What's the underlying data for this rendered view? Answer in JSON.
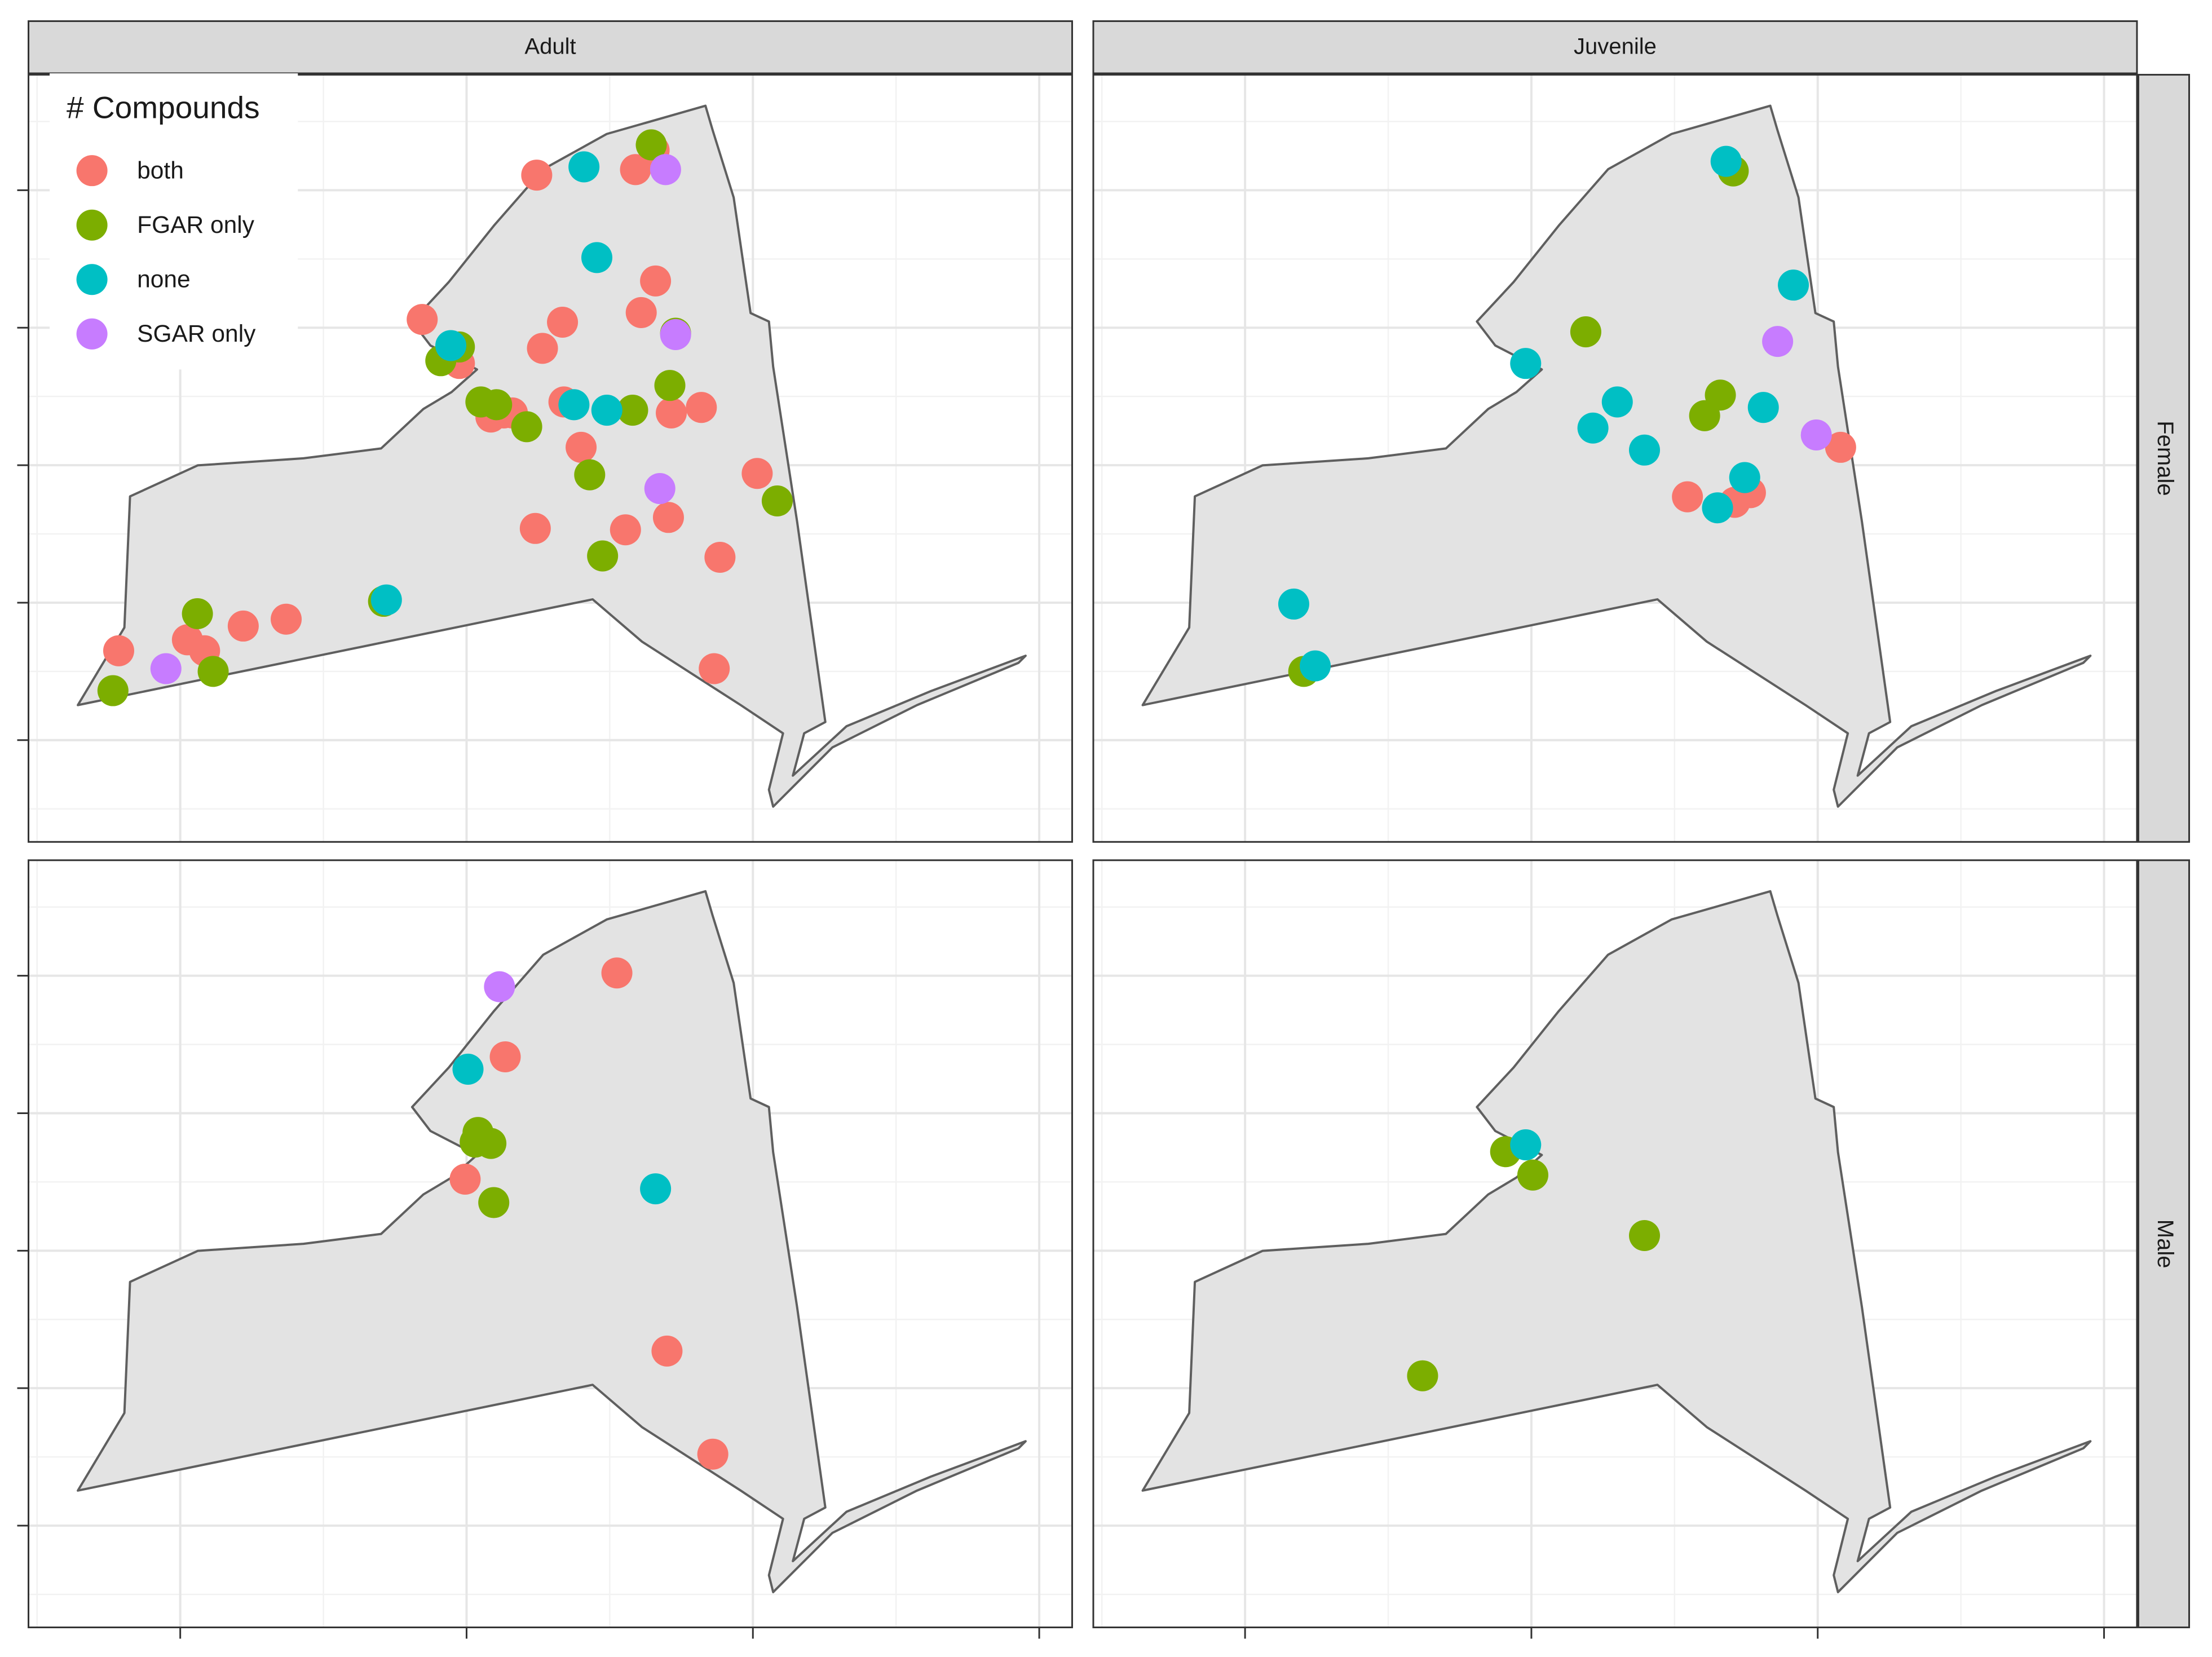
{
  "chart_data": {
    "type": "scatter",
    "legend_title": "# Compounds",
    "legend_position": "top-left",
    "columns": [
      "Adult",
      "Juvenile"
    ],
    "rows": [
      "Female",
      "Male"
    ],
    "xlim": [
      -6,
      723
    ],
    "ylim": [
      4426,
      4984
    ],
    "xticks": [
      100,
      300,
      500,
      700
    ],
    "yticks": [
      4500,
      4600,
      4700,
      4800,
      4900
    ],
    "grid": true,
    "series": [
      {
        "name": "both",
        "color": "#F8766D"
      },
      {
        "name": "FGAR only",
        "color": "#7CAE00"
      },
      {
        "name": "none",
        "color": "#00BFC4"
      },
      {
        "name": "SGAR only",
        "color": "#C77CFF"
      }
    ],
    "panels": [
      {
        "points": [
          {
            "x": [
              349,
              418,
              431,
              432,
              422,
              367,
              353,
              269,
              295,
              368,
              317,
              332,
              326,
              380,
              443,
              464,
              503,
              348,
              411,
              441,
              477,
              473,
              174,
              144,
              105,
              117,
              57
            ],
            "y": [
              4911,
              4915,
              4929,
              4834,
              4811,
              4804,
              4785,
              4806,
              4774,
              4746,
              4735,
              4738,
              4738,
              4713,
              4738,
              4742,
              4694,
              4654,
              4653,
              4662,
              4633,
              4552,
              4588,
              4583,
              4573,
              4565,
              4565
            ]
          },
          {
            "x": [
              429,
              446,
              442,
              416,
              282,
              295,
              310,
              321,
              342,
              386,
              395,
              517,
              242,
              112,
              123,
              53
            ],
            "y": [
              4933,
              4796,
              4758,
              4740,
              4776,
              4786,
              4746,
              4744,
              4728,
              4693,
              4634,
              4674,
              4601,
              4592,
              4550,
              4536
            ]
          },
          {
            "x": [
              382,
              391,
              289,
              375,
              398,
              244
            ],
            "y": [
              4917,
              4851,
              4787,
              4744,
              4740,
              4602
            ]
          },
          {
            "x": [
              439,
              446,
              435,
              90
            ],
            "y": [
              4915,
              4795,
              4683,
              4552
            ]
          }
        ]
      },
      {
        "points": [
          {
            "x": [
              516,
              409,
              442,
              453
            ],
            "y": [
              4713,
              4677,
              4673,
              4680
            ]
          },
          {
            "x": [
              441,
              338,
              432,
              421,
              141
            ],
            "y": [
              4914,
              4797,
              4751,
              4736,
              4550
            ]
          },
          {
            "x": [
              436,
              483,
              296,
              360,
              343,
              379,
              462,
              449,
              430,
              134,
              149
            ],
            "y": [
              4921,
              4831,
              4774,
              4746,
              4727,
              4711,
              4742,
              4691,
              4669,
              4599,
              4554
            ]
          },
          {
            "x": [
              472,
              499
            ],
            "y": [
              4790,
              4722
            ]
          }
        ]
      },
      {
        "points": [
          {
            "x": [
              405,
              327,
              299,
              440,
              472
            ],
            "y": [
              4902,
              4841,
              4752,
              4627,
              4552
            ]
          },
          {
            "x": [
              308,
              317,
              306,
              319
            ],
            "y": [
              4786,
              4778,
              4779,
              4735
            ]
          },
          {
            "x": [
              301,
              432
            ],
            "y": [
              4832,
              4745
            ]
          },
          {
            "x": [
              323
            ],
            "y": [
              4892
            ]
          }
        ]
      },
      {
        "points": [
          {
            "x": [],
            "y": []
          },
          {
            "x": [
              282,
              301,
              379,
              224
            ],
            "y": [
              4772,
              4755,
              4711,
              4609
            ]
          },
          {
            "x": [
              296
            ],
            "y": [
              4777
            ]
          },
          {
            "x": [],
            "y": []
          }
        ]
      }
    ]
  }
}
